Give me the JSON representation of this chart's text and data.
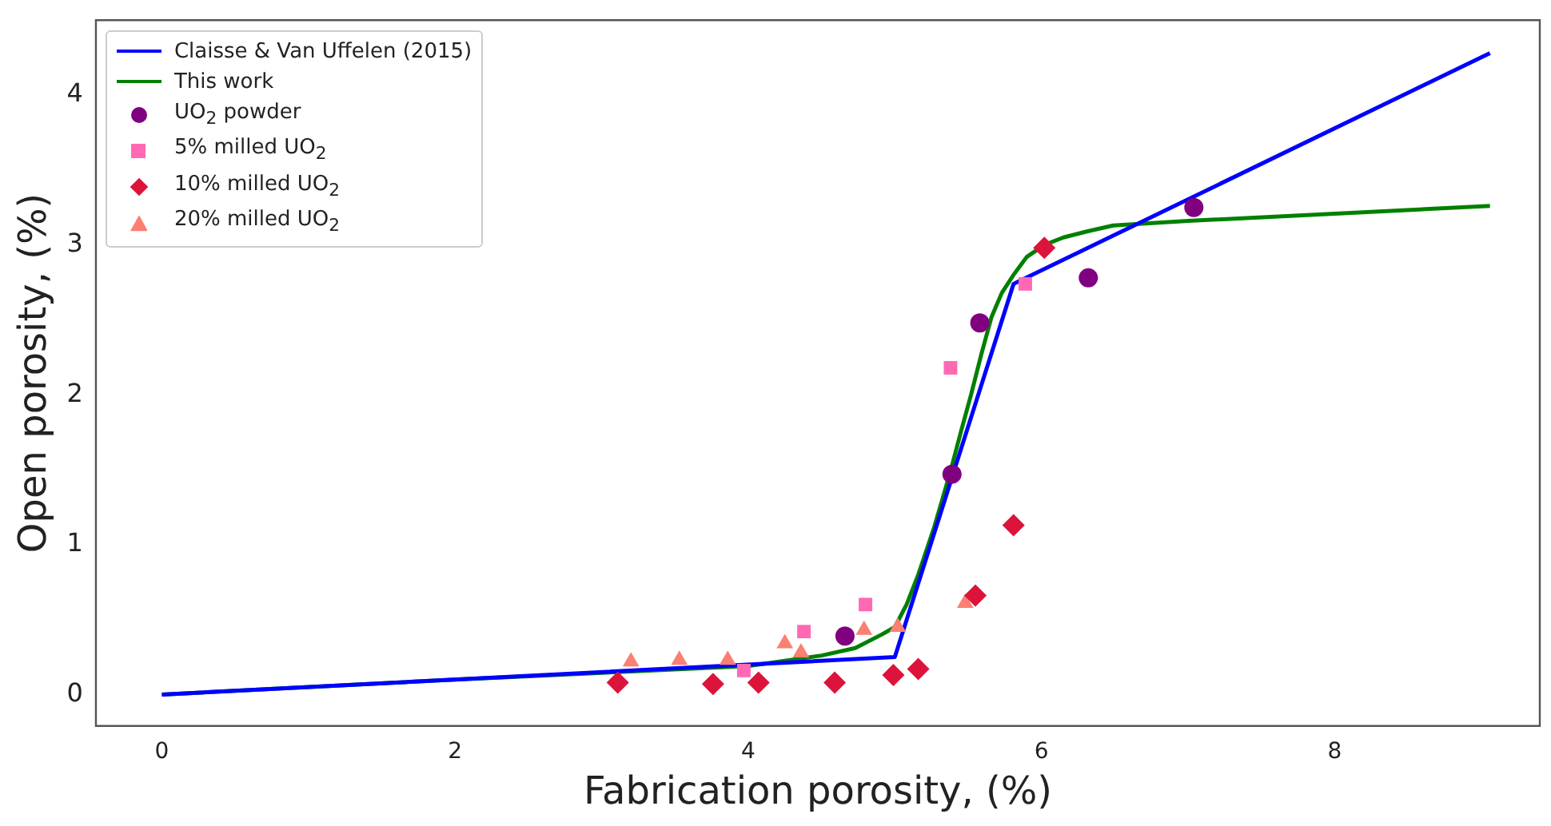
{
  "chart_data": {
    "type": "scatter",
    "xlabel": "Fabrication porosity, (%)",
    "ylabel": "Open porosity, (%)",
    "xlim": [
      -0.45,
      9.4
    ],
    "ylim": [
      -0.21,
      4.5
    ],
    "xticks": [
      0,
      2,
      4,
      6,
      8
    ],
    "yticks": [
      0,
      1,
      2,
      3,
      4
    ],
    "grid": false,
    "legend": "top left",
    "series": [
      {
        "name": "Claisse & Van Uffelen (2015)",
        "type": "line",
        "color": "#0000ff",
        "marker": "none",
        "line_style": "solid",
        "x": [
          0,
          5.0,
          5.81,
          9.06
        ],
        "values": [
          0,
          0.25,
          2.74,
          4.28
        ]
      },
      {
        "name": "This work",
        "type": "line",
        "color": "#008000",
        "marker": "none",
        "line_style": "solid",
        "x": [
          0,
          2,
          4,
          4.5,
          4.73,
          4.91,
          5.0,
          5.08,
          5.16,
          5.27,
          5.38,
          5.45,
          5.52,
          5.59,
          5.66,
          5.73,
          5.81,
          5.9,
          6.02,
          6.15,
          6.31,
          6.49,
          7.0,
          9.06
        ],
        "values": [
          0,
          0.1,
          0.19,
          0.26,
          0.31,
          0.4,
          0.45,
          0.6,
          0.8,
          1.12,
          1.49,
          1.75,
          2.0,
          2.27,
          2.52,
          2.68,
          2.8,
          2.92,
          3.0,
          3.05,
          3.09,
          3.13,
          3.16,
          3.26
        ]
      },
      {
        "name": "UO$_{2}$ powder",
        "type": "scatter",
        "color": "#800080",
        "marker": "circle",
        "x": [
          4.66,
          5.39,
          5.58,
          6.32,
          7.04
        ],
        "values": [
          0.39,
          1.47,
          2.48,
          2.78,
          3.25
        ]
      },
      {
        "name": "5% milled UO$_{2}$",
        "type": "scatter",
        "color": "#ff69b4",
        "marker": "square",
        "x": [
          3.97,
          4.38,
          4.8,
          5.38,
          5.89
        ],
        "values": [
          0.16,
          0.42,
          0.6,
          2.18,
          2.74
        ]
      },
      {
        "name": "10% milled UO$_{2}$",
        "type": "scatter",
        "color": "#dc143c",
        "marker": "diamond",
        "x": [
          3.11,
          3.76,
          4.07,
          4.59,
          4.99,
          5.16,
          5.55,
          5.81,
          6.02
        ],
        "values": [
          0.08,
          0.07,
          0.08,
          0.08,
          0.13,
          0.17,
          0.66,
          1.13,
          2.98
        ]
      },
      {
        "name": "20% milled UO$_{2}$",
        "type": "scatter",
        "color": "#fa8072",
        "marker": "triangle",
        "x": [
          3.2,
          3.53,
          3.86,
          4.25,
          4.36,
          4.79,
          5.02,
          5.48
        ],
        "values": [
          0.22,
          0.23,
          0.23,
          0.34,
          0.28,
          0.43,
          0.45,
          0.61
        ]
      }
    ]
  }
}
